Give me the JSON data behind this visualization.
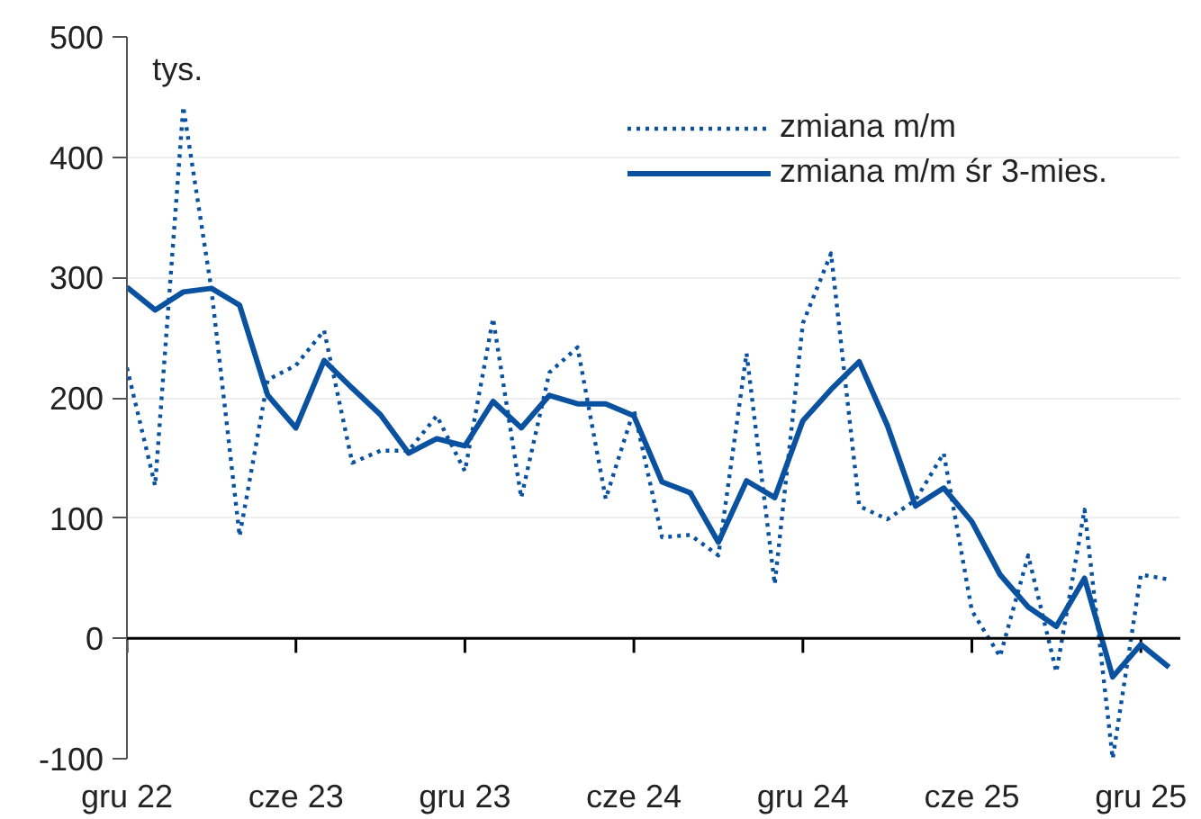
{
  "chart_data": {
    "type": "line",
    "categories": [
      "gru 22",
      null,
      null,
      null,
      null,
      null,
      "cze 23",
      null,
      null,
      null,
      null,
      null,
      "gru 23",
      null,
      null,
      null,
      null,
      null,
      "cze 24",
      null,
      null,
      null,
      null,
      null,
      "gru 24",
      null,
      null,
      null,
      null,
      null,
      "cze 25",
      null,
      null,
      null,
      null,
      null,
      "gru 25",
      null
    ],
    "series": [
      {
        "name": "zmiana m/m",
        "color": "#0a52a0",
        "line_style": "dotted",
        "values": [
          225,
          127,
          442,
          290,
          85,
          215,
          227,
          256,
          146,
          156,
          156,
          185,
          139,
          266,
          117,
          221,
          242,
          116,
          190,
          84,
          86,
          69,
          237,
          45,
          262,
          320,
          110,
          99,
          115,
          154,
          23,
          -15,
          69,
          -28,
          107,
          -100,
          53,
          49
        ]
      },
      {
        "name": "zmiana m/m śr 3-mies.",
        "color": "#0a52a0",
        "line_style": "solid",
        "values": [
          292,
          273,
          288,
          291,
          277,
          202,
          175,
          231,
          208,
          186,
          154,
          166,
          160,
          197,
          175,
          202,
          195,
          195,
          185,
          130,
          121,
          80,
          131,
          117,
          181,
          207,
          230,
          177,
          110,
          125,
          97,
          53,
          26,
          10,
          50,
          -32,
          -5,
          -24
        ]
      }
    ],
    "ylim": [
      -100,
      500
    ],
    "yticks": [
      -100,
      0,
      100,
      200,
      300,
      400,
      500
    ],
    "ref_lines": [
      {
        "axis": "y",
        "value": 0,
        "color": "#000000"
      }
    ],
    "annotations": [
      "tys."
    ],
    "grid": "y",
    "legend": "top right",
    "marker": "none"
  }
}
